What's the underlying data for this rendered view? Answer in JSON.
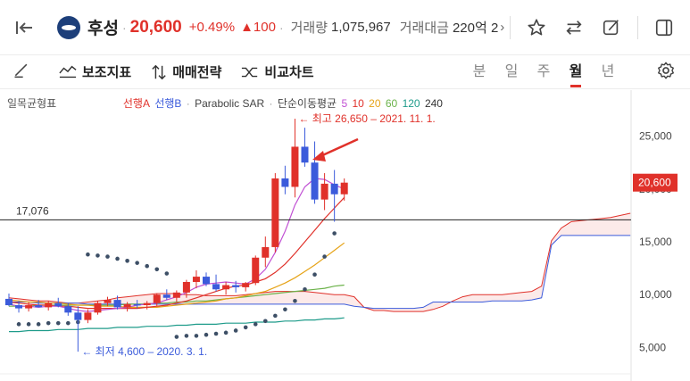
{
  "header": {
    "stock_name": "후성",
    "price": "20,600",
    "change_pct": "+0.49%",
    "change_abs": "▲100",
    "volume_label": "거래량",
    "volume_value": "1,075,967",
    "amount_label": "거래대금",
    "amount_value": "220억 2"
  },
  "toolbar": {
    "aux_indicator": "보조지표",
    "trade_strategy": "매매전략",
    "compare_chart": "비교차트",
    "periods": [
      "분",
      "일",
      "주",
      "월",
      "년"
    ],
    "active_period": "월"
  },
  "colors": {
    "up": "#e0312a",
    "down": "#3b5bdb",
    "accent": "#e0312a"
  },
  "chart_data": {
    "type": "candlestick",
    "legend": {
      "ichimoku": "일목균형표",
      "span_a": "선행A",
      "span_b": "선행B",
      "psar": "Parabolic SAR",
      "ma_label": "단순이동평균",
      "ma_periods": [
        "5",
        "10",
        "20",
        "60",
        "120",
        "240"
      ]
    },
    "ylim": [
      2500,
      27500
    ],
    "y_ticks": [
      {
        "value": 5000,
        "label": "5,000"
      },
      {
        "value": 10000,
        "label": "10,000"
      },
      {
        "value": 15000,
        "label": "15,000"
      },
      {
        "value": 20000,
        "label": "20,000"
      },
      {
        "value": 25000,
        "label": "25,000"
      }
    ],
    "current_price": {
      "value": 20600,
      "label": "20,600"
    },
    "horizontal_line": {
      "value": 17076,
      "label": "17,076"
    },
    "annotations": {
      "high": "← 최고 26,650 – 2021. 11. 1.",
      "low": "← 최저 4,600 – 2020. 3. 1."
    },
    "candles": [
      {
        "o": 9600,
        "h": 10100,
        "l": 8900,
        "c": 9000
      },
      {
        "o": 9000,
        "h": 9400,
        "l": 8300,
        "c": 8700
      },
      {
        "o": 8700,
        "h": 9300,
        "l": 8400,
        "c": 9000
      },
      {
        "o": 9000,
        "h": 9500,
        "l": 8800,
        "c": 8800
      },
      {
        "o": 8800,
        "h": 9400,
        "l": 8500,
        "c": 9200
      },
      {
        "o": 9200,
        "h": 9700,
        "l": 8800,
        "c": 8900
      },
      {
        "o": 8900,
        "h": 9200,
        "l": 8000,
        "c": 8300
      },
      {
        "o": 8300,
        "h": 8900,
        "l": 4600,
        "c": 7600
      },
      {
        "o": 7600,
        "h": 8600,
        "l": 7300,
        "c": 8300
      },
      {
        "o": 8300,
        "h": 9400,
        "l": 8100,
        "c": 9200
      },
      {
        "o": 9200,
        "h": 9800,
        "l": 8900,
        "c": 9500
      },
      {
        "o": 9500,
        "h": 9900,
        "l": 8600,
        "c": 8800
      },
      {
        "o": 8800,
        "h": 9300,
        "l": 8400,
        "c": 9100
      },
      {
        "o": 9100,
        "h": 9500,
        "l": 8700,
        "c": 9000
      },
      {
        "o": 9000,
        "h": 9400,
        "l": 8600,
        "c": 9200
      },
      {
        "o": 9200,
        "h": 10100,
        "l": 8900,
        "c": 10000
      },
      {
        "o": 10000,
        "h": 10500,
        "l": 9500,
        "c": 9700
      },
      {
        "o": 9700,
        "h": 10400,
        "l": 9300,
        "c": 10200
      },
      {
        "o": 10200,
        "h": 11400,
        "l": 9700,
        "c": 11200
      },
      {
        "o": 11200,
        "h": 12300,
        "l": 10600,
        "c": 11700
      },
      {
        "o": 11700,
        "h": 12100,
        "l": 10800,
        "c": 11000
      },
      {
        "o": 11000,
        "h": 11900,
        "l": 10300,
        "c": 10500
      },
      {
        "o": 10500,
        "h": 11200,
        "l": 10000,
        "c": 10900
      },
      {
        "o": 10900,
        "h": 11300,
        "l": 10200,
        "c": 10700
      },
      {
        "o": 10700,
        "h": 11200,
        "l": 10300,
        "c": 11100
      },
      {
        "o": 11100,
        "h": 13700,
        "l": 10900,
        "c": 13500
      },
      {
        "o": 13500,
        "h": 15500,
        "l": 12600,
        "c": 14500
      },
      {
        "o": 14500,
        "h": 21500,
        "l": 14000,
        "c": 21000
      },
      {
        "o": 21000,
        "h": 22200,
        "l": 19500,
        "c": 20200
      },
      {
        "o": 20200,
        "h": 26650,
        "l": 19200,
        "c": 24000
      },
      {
        "o": 24000,
        "h": 25800,
        "l": 22100,
        "c": 22500
      },
      {
        "o": 22500,
        "h": 24500,
        "l": 18600,
        "c": 19000
      },
      {
        "o": 19000,
        "h": 21500,
        "l": 18000,
        "c": 20500
      },
      {
        "o": 20500,
        "h": 21800,
        "l": 16900,
        "c": 19500
      },
      {
        "o": 19500,
        "h": 21000,
        "l": 18900,
        "c": 20600
      }
    ],
    "ma5": [
      9100,
      8900,
      8900,
      8800,
      8900,
      8900,
      8700,
      8500,
      8400,
      8500,
      8600,
      8700,
      8800,
      9000,
      9100,
      9200,
      9500,
      9800,
      10200,
      10700,
      11000,
      11100,
      11200,
      11100,
      11000,
      11500,
      12400,
      14000,
      16000,
      18500,
      20200,
      21000,
      20900,
      20400,
      20000
    ],
    "ma10": [
      9300,
      9200,
      9100,
      9000,
      9000,
      8900,
      8900,
      8800,
      8700,
      8700,
      8700,
      8700,
      8700,
      8700,
      8800,
      8900,
      9000,
      9200,
      9400,
      9700,
      10000,
      10300,
      10600,
      10800,
      10900,
      11200,
      11500,
      12100,
      12900,
      13900,
      15000,
      16100,
      17200,
      18200,
      19200
    ],
    "ma20": [
      9500,
      9400,
      9300,
      9300,
      9200,
      9200,
      9100,
      9000,
      9000,
      8900,
      8900,
      8900,
      8800,
      8800,
      8800,
      8800,
      8900,
      9000,
      9100,
      9200,
      9300,
      9400,
      9600,
      9700,
      9900,
      10100,
      10300,
      10700,
      11100,
      11600,
      12200,
      12800,
      13500,
      14200,
      14900
    ],
    "ma60": [
      8900,
      8900,
      8900,
      9000,
      9000,
      9000,
      9000,
      9000,
      9000,
      9000,
      9000,
      9000,
      9100,
      9100,
      9100,
      9200,
      9200,
      9300,
      9300,
      9400,
      9400,
      9500,
      9600,
      9700,
      9800,
      9900,
      10000,
      10100,
      10200,
      10300,
      10400,
      10500,
      10600,
      10800,
      10900
    ],
    "ma120": [
      6500,
      6500,
      6600,
      6600,
      6600,
      6700,
      6700,
      6700,
      6800,
      6800,
      6800,
      6900,
      6900,
      6900,
      7000,
      7000,
      7000,
      7100,
      7100,
      7200,
      7200,
      7200,
      7300,
      7300,
      7300,
      7400,
      7400,
      7400,
      7500,
      7500,
      7600,
      7600,
      7700,
      7700,
      7800
    ],
    "psar": [
      null,
      7200,
      7200,
      7200,
      7300,
      7300,
      7300,
      7400,
      13800,
      13700,
      13600,
      13400,
      13200,
      13000,
      12700,
      12400,
      12000,
      6000,
      6100,
      6100,
      6200,
      6300,
      6400,
      6600,
      6900,
      7200,
      7500,
      8000,
      8600,
      9400,
      10500,
      11900,
      13600,
      15800,
      null
    ],
    "span_a": [
      9700,
      9600,
      9500,
      9400,
      9400,
      9300,
      9200,
      9200,
      9300,
      9400,
      9500,
      9700,
      9800,
      9900,
      10000,
      10100,
      10100,
      10100,
      10000,
      10000,
      9900,
      9900,
      9900,
      9900,
      10000,
      10100,
      10200,
      10300,
      10300,
      10300,
      10300,
      10200,
      10100,
      10000,
      10000,
      9800,
      8800,
      8500,
      8500,
      8400,
      8400,
      8400,
      8400,
      8600,
      8900,
      9400,
      9800,
      10000,
      10000,
      10000,
      10000,
      10100,
      10200,
      10300,
      10800,
      15100,
      16300,
      16900,
      17000,
      17100,
      17200,
      17300,
      17500,
      17700
    ],
    "span_b": [
      9300,
      9300,
      9300,
      9200,
      9200,
      9200,
      9200,
      9200,
      9100,
      9100,
      9100,
      9100,
      9100,
      9100,
      9100,
      9100,
      9100,
      9100,
      9100,
      9100,
      9100,
      9100,
      9100,
      9100,
      9100,
      9100,
      9100,
      9100,
      9100,
      9100,
      9100,
      9100,
      9100,
      9100,
      9100,
      8900,
      8800,
      8700,
      8700,
      8700,
      8700,
      8700,
      8800,
      9300,
      9300,
      9300,
      9300,
      9300,
      9300,
      9400,
      9400,
      9400,
      9400,
      9500,
      9700,
      14700,
      15600,
      15600,
      15600,
      15600,
      15600,
      15600,
      15600,
      15600
    ]
  }
}
